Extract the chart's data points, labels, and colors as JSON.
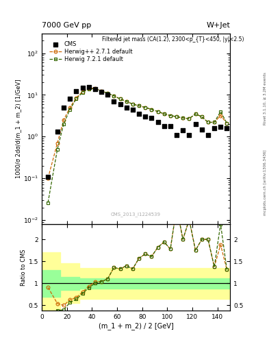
{
  "title_left": "7000 GeV pp",
  "title_right": "W+Jet",
  "annotation": "Filtered jet mass (CA(1.2), 2300<p_{T}<450, |y|<2.5)",
  "watermark": "CMS_2013_I1224539",
  "right_label1": "Rivet 3.1.10, ≥ 3.2M events",
  "right_label2": "mcplots.cern.ch [arXiv:1306.3436]",
  "xlabel": "(m_1 + m_2) / 2 [GeV]",
  "ylabel_main": "1000/σ 2dσ/d(m_1 + m_2) [1/GeV]",
  "ylabel_ratio": "Ratio to CMS",
  "xlim": [
    0,
    150
  ],
  "ylim_main": [
    0.008,
    300
  ],
  "ylim_ratio": [
    0.38,
    2.35
  ],
  "cms_x": [
    5,
    12.5,
    17.5,
    22.5,
    27.5,
    32.5,
    37.5,
    42.5,
    47.5,
    52.5,
    57.5,
    62.5,
    67.5,
    72.5,
    77.5,
    82.5,
    87.5,
    92.5,
    97.5,
    102.5,
    107.5,
    112.5,
    117.5,
    122.5,
    127.5,
    132.5,
    137.5,
    142.5,
    147.5
  ],
  "cms_y": [
    0.11,
    1.3,
    5.0,
    8.0,
    12.5,
    15.0,
    15.5,
    14.0,
    12.0,
    10.0,
    7.0,
    6.0,
    5.0,
    4.5,
    3.5,
    3.0,
    2.8,
    2.2,
    1.8,
    1.8,
    1.1,
    1.4,
    1.1,
    2.0,
    1.5,
    1.1,
    1.6,
    1.7,
    1.6
  ],
  "hpp_x": [
    5,
    12.5,
    17.5,
    22.5,
    27.5,
    32.5,
    37.5,
    42.5,
    47.5,
    52.5,
    57.5,
    62.5,
    67.5,
    72.5,
    77.5,
    82.5,
    87.5,
    92.5,
    97.5,
    102.5,
    107.5,
    112.5,
    117.5,
    122.5,
    127.5,
    132.5,
    137.5,
    142.5,
    147.5
  ],
  "hpp_y": [
    0.1,
    0.7,
    2.5,
    5.0,
    8.5,
    12.0,
    14.5,
    14.5,
    12.5,
    11.0,
    9.5,
    8.0,
    7.0,
    6.0,
    5.5,
    5.0,
    4.5,
    4.0,
    3.5,
    3.2,
    3.0,
    2.8,
    2.7,
    3.5,
    3.0,
    2.2,
    2.2,
    3.2,
    2.1
  ],
  "h7_x": [
    5,
    12.5,
    17.5,
    22.5,
    27.5,
    32.5,
    37.5,
    42.5,
    47.5,
    52.5,
    57.5,
    62.5,
    67.5,
    72.5,
    77.5,
    82.5,
    87.5,
    92.5,
    97.5,
    102.5,
    107.5,
    112.5,
    117.5,
    122.5,
    127.5,
    132.5,
    137.5,
    142.5,
    147.5
  ],
  "h7_y": [
    0.026,
    0.5,
    2.0,
    4.5,
    8.0,
    11.5,
    14.0,
    14.0,
    12.5,
    11.0,
    9.5,
    8.0,
    7.0,
    6.0,
    5.5,
    5.0,
    4.5,
    4.0,
    3.5,
    3.2,
    3.0,
    2.8,
    2.7,
    3.5,
    3.0,
    2.2,
    2.2,
    4.0,
    2.1
  ],
  "hpp_color": "#cc6600",
  "h7_color": "#336600",
  "cms_color": "#000000",
  "ratio_x": [
    5,
    12.5,
    17.5,
    22.5,
    27.5,
    32.5,
    37.5,
    42.5,
    47.5,
    52.5,
    57.5,
    62.5,
    67.5,
    72.5,
    77.5,
    82.5,
    87.5,
    92.5,
    97.5,
    102.5,
    107.5,
    112.5,
    117.5,
    122.5,
    127.5,
    132.5,
    137.5,
    142.5,
    147.5
  ],
  "ratio_hpp_y": [
    0.91,
    0.54,
    0.5,
    0.625,
    0.68,
    0.8,
    0.935,
    1.035,
    1.04,
    1.1,
    1.36,
    1.33,
    1.4,
    1.33,
    1.57,
    1.67,
    1.61,
    1.82,
    1.94,
    1.78,
    2.73,
    2.0,
    2.45,
    1.75,
    2.0,
    2.0,
    1.375,
    1.88,
    1.31
  ],
  "ratio_h7_y": [
    0.236,
    0.385,
    0.4,
    0.5625,
    0.64,
    0.767,
    0.903,
    1.0,
    1.04,
    1.1,
    1.36,
    1.33,
    1.4,
    1.33,
    1.57,
    1.67,
    1.61,
    1.82,
    1.94,
    1.78,
    2.73,
    2.0,
    2.45,
    1.75,
    2.0,
    2.0,
    1.375,
    2.35,
    1.31
  ],
  "band_x": [
    0,
    10,
    15,
    20,
    25,
    30,
    35,
    40,
    45,
    50,
    55,
    60,
    65,
    70,
    75,
    80,
    85,
    90,
    95,
    100,
    105,
    110,
    115,
    120,
    125,
    130,
    135,
    140,
    145,
    150
  ],
  "band_green_lo": [
    0.7,
    0.7,
    0.85,
    0.85,
    0.85,
    0.88,
    0.88,
    0.88,
    0.88,
    0.88,
    0.88,
    0.88,
    0.88,
    0.88,
    0.88,
    0.88,
    0.88,
    0.88,
    0.88,
    0.88,
    0.88,
    0.88,
    0.88,
    0.88,
    0.88,
    0.88,
    0.88,
    0.88,
    0.88,
    0.88
  ],
  "band_green_hi": [
    1.3,
    1.3,
    1.15,
    1.15,
    1.15,
    1.12,
    1.12,
    1.12,
    1.12,
    1.12,
    1.12,
    1.12,
    1.12,
    1.12,
    1.12,
    1.12,
    1.12,
    1.12,
    1.12,
    1.12,
    1.12,
    1.12,
    1.12,
    1.12,
    1.12,
    1.12,
    1.12,
    1.12,
    1.12,
    1.12
  ],
  "band_yellow_lo": [
    0.4,
    0.4,
    0.55,
    0.55,
    0.55,
    0.65,
    0.65,
    0.65,
    0.65,
    0.65,
    0.65,
    0.65,
    0.65,
    0.65,
    0.65,
    0.65,
    0.65,
    0.65,
    0.65,
    0.65,
    0.65,
    0.65,
    0.65,
    0.65,
    0.65,
    0.65,
    0.65,
    0.65,
    0.65,
    0.65
  ],
  "band_yellow_hi": [
    1.7,
    1.7,
    1.45,
    1.45,
    1.45,
    1.35,
    1.35,
    1.35,
    1.35,
    1.35,
    1.35,
    1.35,
    1.35,
    1.35,
    1.35,
    1.35,
    1.35,
    1.35,
    1.35,
    1.35,
    1.35,
    1.35,
    1.35,
    1.35,
    1.35,
    1.35,
    1.35,
    1.35,
    1.35,
    1.35
  ]
}
